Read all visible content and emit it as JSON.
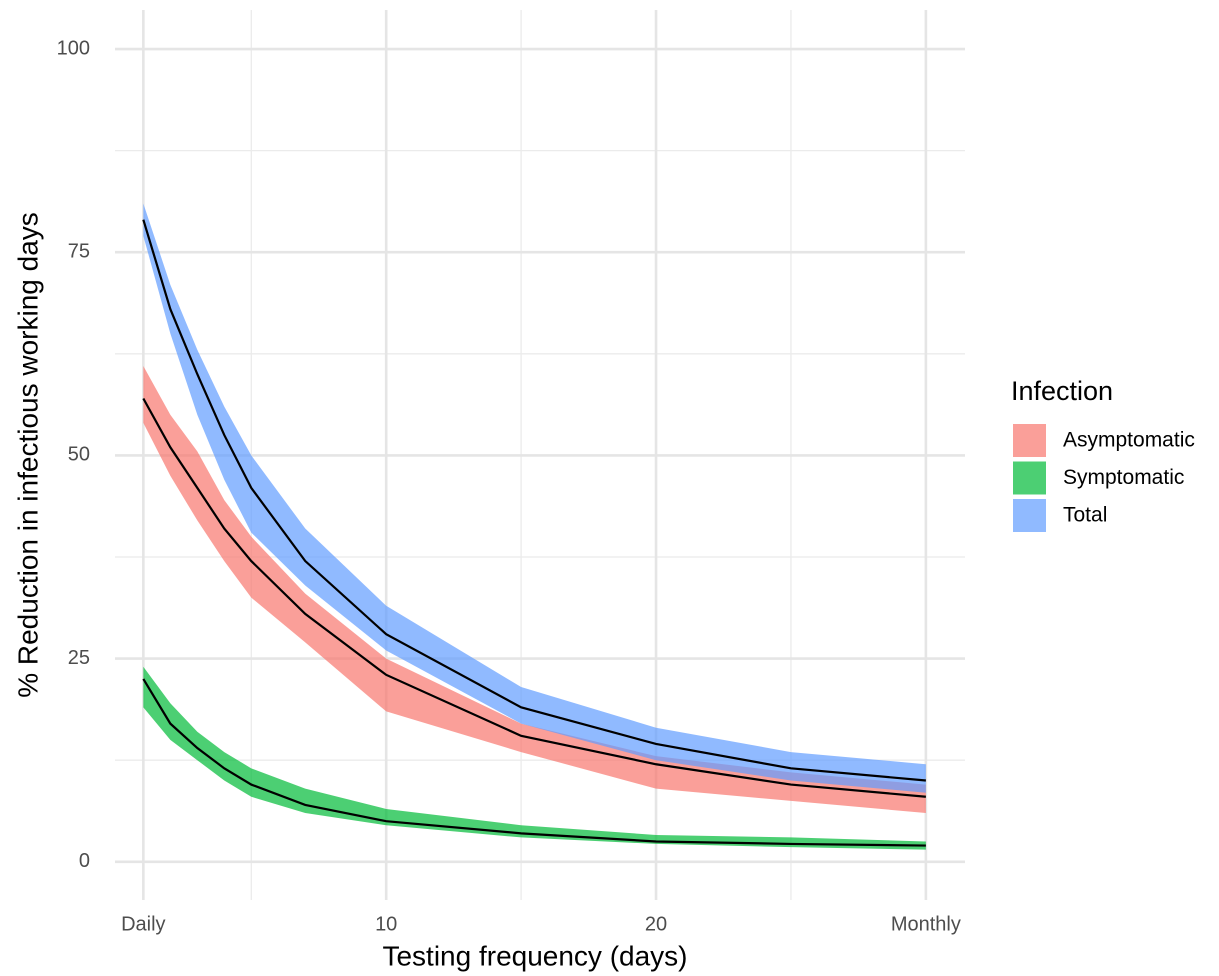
{
  "chart_data": {
    "type": "ribbon-line",
    "x_label": "Testing frequency (days)",
    "y_label": "% Reduction in infectious working days",
    "legend_title": "Infection",
    "legend_position": "right",
    "grid": true,
    "line_color": "#000000",
    "ribbon_opacity": 0.7,
    "x": [
      1,
      2,
      3,
      4,
      5,
      7,
      10,
      15,
      20,
      25,
      30
    ],
    "xlim": [
      -0.05,
      31.45
    ],
    "xticks": [
      {
        "value": 1,
        "label": "Daily"
      },
      10,
      20,
      {
        "value": 30,
        "label": "Monthly"
      }
    ],
    "xminor": [
      5,
      15,
      25
    ],
    "ylim": [
      -4.7,
      104.8
    ],
    "yticks": [
      0,
      25,
      50,
      75,
      100
    ],
    "yminor": [
      12.5,
      37.5,
      62.5,
      87.5
    ],
    "series": [
      {
        "name": "Asymptomatic",
        "color": "#F8766D",
        "values": [
          57,
          51,
          46,
          41,
          37,
          30.5,
          23,
          15.5,
          12,
          9.5,
          8
        ],
        "upper": [
          61,
          55,
          50.5,
          44.5,
          40,
          33,
          25,
          17,
          13,
          11,
          9.5
        ],
        "lower": [
          54,
          47.5,
          42,
          37,
          32.5,
          27,
          18.5,
          13.5,
          9,
          7.5,
          6
        ]
      },
      {
        "name": "Symptomatic",
        "color": "#00BA38",
        "values": [
          22.5,
          17,
          14,
          11.5,
          9.5,
          7,
          5,
          3.5,
          2.5,
          2.2,
          2
        ],
        "upper": [
          24,
          19.5,
          16,
          13.5,
          11.5,
          9,
          6.5,
          4.5,
          3.3,
          3,
          2.5
        ],
        "lower": [
          19,
          15,
          12.5,
          10,
          8,
          6,
          4.5,
          3,
          2.2,
          1.8,
          1.5
        ]
      },
      {
        "name": "Total",
        "color": "#619CFF",
        "values": [
          79,
          68,
          60,
          52.5,
          46,
          37,
          28,
          19,
          14.5,
          11.5,
          10
        ],
        "upper": [
          81,
          71,
          63,
          56,
          50,
          41,
          31.5,
          21.5,
          16.5,
          13.5,
          12
        ],
        "lower": [
          77,
          65,
          55,
          47,
          40.5,
          34,
          26,
          17,
          12.5,
          10,
          8.5
        ]
      }
    ]
  }
}
